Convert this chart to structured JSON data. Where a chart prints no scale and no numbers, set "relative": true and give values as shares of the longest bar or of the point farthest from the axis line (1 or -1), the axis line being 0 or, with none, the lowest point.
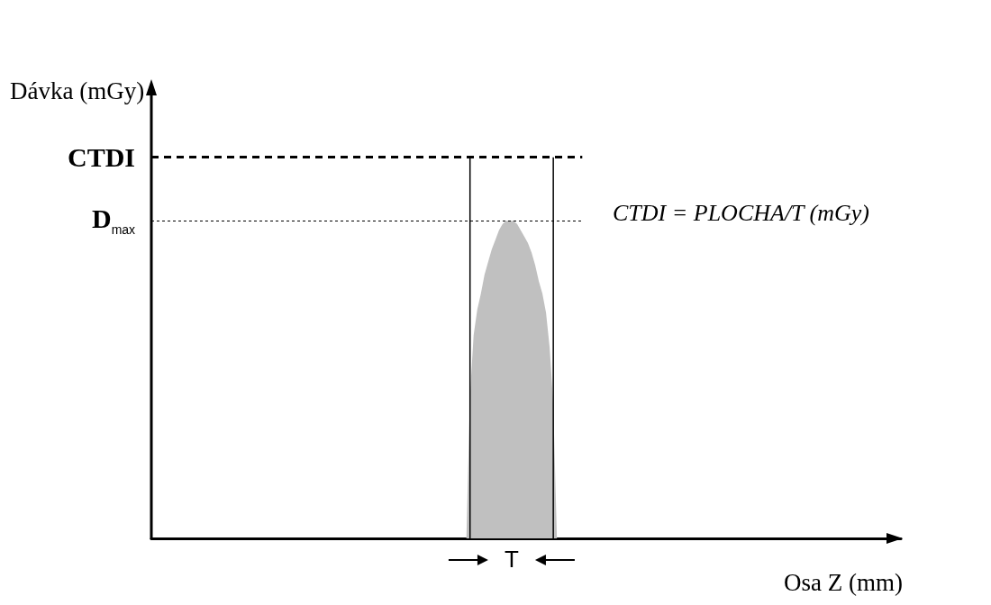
{
  "chart_data": {
    "type": "area",
    "relative": true,
    "xlabel": "Osa Z (mm)",
    "ylabel": "Dávka (mGy)",
    "categories": [
      null,
      null,
      null,
      null,
      null,
      null,
      null,
      null,
      null,
      null,
      null,
      null,
      null,
      null,
      null,
      null,
      null,
      null,
      null,
      null,
      null,
      null,
      null,
      null,
      null,
      null,
      null,
      null,
      null,
      null,
      null,
      null,
      null,
      null,
      null,
      null,
      null,
      null,
      null,
      null,
      null,
      null,
      null,
      null,
      null,
      null,
      null,
      null,
      null,
      null,
      null,
      null,
      null,
      null,
      null,
      null,
      null,
      null,
      null,
      null,
      null,
      null,
      null,
      null,
      null,
      null,
      null,
      null,
      null,
      null,
      null,
      null,
      null,
      null,
      null,
      null,
      null,
      null,
      null,
      null,
      null,
      null,
      null,
      null,
      null,
      null,
      null,
      null,
      null,
      null,
      null,
      null,
      null,
      null,
      null,
      null,
      null,
      null,
      null,
      null,
      null,
      null,
      null,
      null,
      null,
      null,
      null,
      null,
      null,
      null,
      null,
      null,
      null,
      null,
      null,
      null,
      null,
      null,
      null,
      null,
      null,
      null,
      null,
      null,
      null,
      null,
      null,
      null,
      null,
      null,
      null,
      null,
      null,
      null,
      null,
      null,
      null,
      null,
      null,
      null,
      null,
      null,
      null,
      null,
      null,
      null,
      null,
      null,
      null,
      null,
      null,
      null,
      null,
      null,
      null,
      null,
      null,
      null,
      null,
      null,
      null,
      null,
      null,
      null,
      null,
      null,
      null,
      null,
      null,
      null,
      null,
      null,
      null,
      null,
      null,
      null,
      null,
      null,
      null,
      null,
      null,
      null,
      null,
      null,
      null,
      null,
      null,
      null,
      null,
      null,
      null,
      null,
      null,
      null,
      null,
      null,
      null,
      null,
      null,
      null,
      null,
      null,
      null,
      null,
      null,
      null,
      null,
      null
    ],
    "series": [
      {
        "color": "#c0c0c0",
        "values": [
          null,
          null,
          null,
          null,
          null,
          null,
          null,
          null,
          null,
          null,
          null,
          null,
          null,
          null,
          null,
          null,
          null,
          null,
          null,
          null,
          null,
          null,
          null,
          null,
          null,
          null,
          null,
          null,
          null,
          null,
          null,
          null,
          null,
          null,
          null,
          null,
          null,
          null,
          null,
          null,
          null,
          null,
          null,
          null,
          null,
          null,
          null,
          null,
          null,
          null,
          null,
          null,
          null,
          null,
          null,
          null,
          null,
          null,
          null,
          null,
          null,
          null,
          null,
          null,
          null,
          null,
          null,
          null,
          null,
          null,
          null,
          null,
          null,
          null,
          null,
          null,
          null,
          null,
          null,
          null,
          null,
          null,
          null,
          null,
          null,
          null,
          null,
          0,
          0.45,
          0.64,
          0.72,
          0.77,
          0.83,
          0.87,
          0.91,
          0.94,
          0.97,
          0.99,
          1,
          1,
          1,
          0.99,
          0.97,
          0.95,
          0.93,
          0.9,
          0.86,
          0.81,
          0.77,
          0.71,
          0.6,
          0.42,
          0,
          null,
          null,
          null,
          null,
          null,
          null,
          null,
          null,
          null,
          null,
          null,
          null,
          null,
          null,
          null,
          null,
          null,
          null,
          null,
          null,
          null,
          null,
          null,
          null,
          null,
          null,
          null,
          null,
          null,
          null,
          null,
          null,
          null,
          null,
          null,
          null,
          null,
          null,
          null,
          null,
          null,
          null,
          null,
          null,
          null,
          null,
          null,
          null,
          null,
          null,
          null,
          null,
          null,
          null,
          null,
          null,
          null,
          null,
          null,
          null,
          null,
          null,
          null,
          null,
          null,
          null,
          null,
          null,
          null,
          null,
          null,
          null,
          null,
          null,
          null,
          null,
          null,
          null,
          null,
          null,
          null,
          null,
          null,
          null,
          null,
          null,
          null,
          null,
          null,
          null,
          null,
          null,
          null,
          null,
          null
        ]
      }
    ],
    "ref_lines": [
      {
        "axis": "y",
        "value": 1.2,
        "label": "CTDI",
        "color": "#000000",
        "line_style": "dashed"
      },
      {
        "axis": "y",
        "value": 1,
        "label": "D$_{max}$",
        "color": "#000000",
        "line_style": "dotted"
      }
    ],
    "annotations": [
      "T",
      "CTDI = PLOCHA/T (mGy)"
    ]
  }
}
